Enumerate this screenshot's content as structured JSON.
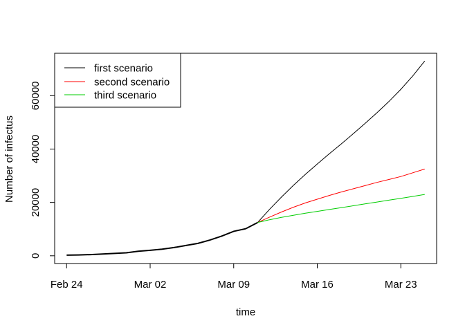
{
  "chart_data": {
    "type": "line",
    "title": "",
    "xlabel": "time",
    "ylabel": "Number of infectus",
    "x_start": "2020-02-24",
    "x_end": "2020-03-25",
    "xlim": [
      "2020-02-23",
      "2020-03-26"
    ],
    "ylim": [
      -2900,
      75900
    ],
    "x_ticks": [
      {
        "date": "2020-02-24",
        "label": "Feb 24"
      },
      {
        "date": "2020-03-02",
        "label": "Mar 02"
      },
      {
        "date": "2020-03-09",
        "label": "Mar 09"
      },
      {
        "date": "2020-03-16",
        "label": "Mar 16"
      },
      {
        "date": "2020-03-23",
        "label": "Mar 23"
      }
    ],
    "y_ticks": [
      {
        "value": 0,
        "label": "0"
      },
      {
        "value": 20000,
        "label": "20000"
      },
      {
        "value": 40000,
        "label": "40000"
      },
      {
        "value": 60000,
        "label": "60000"
      }
    ],
    "legend_position": "top-left",
    "grid": false,
    "observed": {
      "dates": [
        "2020-02-24",
        "2020-02-25",
        "2020-02-26",
        "2020-02-27",
        "2020-02-28",
        "2020-02-29",
        "2020-03-01",
        "2020-03-02",
        "2020-03-03",
        "2020-03-04",
        "2020-03-05",
        "2020-03-06",
        "2020-03-07",
        "2020-03-08",
        "2020-03-09",
        "2020-03-10",
        "2020-03-11"
      ],
      "values": [
        230,
        320,
        450,
        650,
        890,
        1130,
        1690,
        2040,
        2500,
        3090,
        3860,
        4640,
        5880,
        7380,
        9170,
        10150,
        12460
      ]
    },
    "series": [
      {
        "name": "first scenario",
        "color": "#000000",
        "dates": [
          "2020-03-11",
          "2020-03-12",
          "2020-03-13",
          "2020-03-14",
          "2020-03-15",
          "2020-03-16",
          "2020-03-17",
          "2020-03-18",
          "2020-03-19",
          "2020-03-20",
          "2020-03-21",
          "2020-03-22",
          "2020-03-23",
          "2020-03-24",
          "2020-03-25"
        ],
        "values": [
          12460,
          17400,
          22000,
          26400,
          30500,
          34400,
          38200,
          41900,
          45700,
          49600,
          53600,
          57800,
          62400,
          67400,
          73000
        ]
      },
      {
        "name": "second scenario",
        "color": "#ff0000",
        "dates": [
          "2020-03-11",
          "2020-03-12",
          "2020-03-13",
          "2020-03-14",
          "2020-03-15",
          "2020-03-16",
          "2020-03-17",
          "2020-03-18",
          "2020-03-19",
          "2020-03-20",
          "2020-03-21",
          "2020-03-22",
          "2020-03-23",
          "2020-03-24",
          "2020-03-25"
        ],
        "values": [
          12460,
          14500,
          16400,
          18200,
          19800,
          21200,
          22600,
          23900,
          25100,
          26300,
          27500,
          28600,
          29700,
          31100,
          32500
        ]
      },
      {
        "name": "third scenario",
        "color": "#00cd00",
        "dates": [
          "2020-03-11",
          "2020-03-12",
          "2020-03-13",
          "2020-03-14",
          "2020-03-15",
          "2020-03-16",
          "2020-03-17",
          "2020-03-18",
          "2020-03-19",
          "2020-03-20",
          "2020-03-21",
          "2020-03-22",
          "2020-03-23",
          "2020-03-24",
          "2020-03-25"
        ],
        "values": [
          12460,
          13500,
          14400,
          15200,
          15950,
          16650,
          17350,
          18050,
          18750,
          19450,
          20150,
          20850,
          21550,
          22250,
          23000
        ]
      }
    ]
  }
}
